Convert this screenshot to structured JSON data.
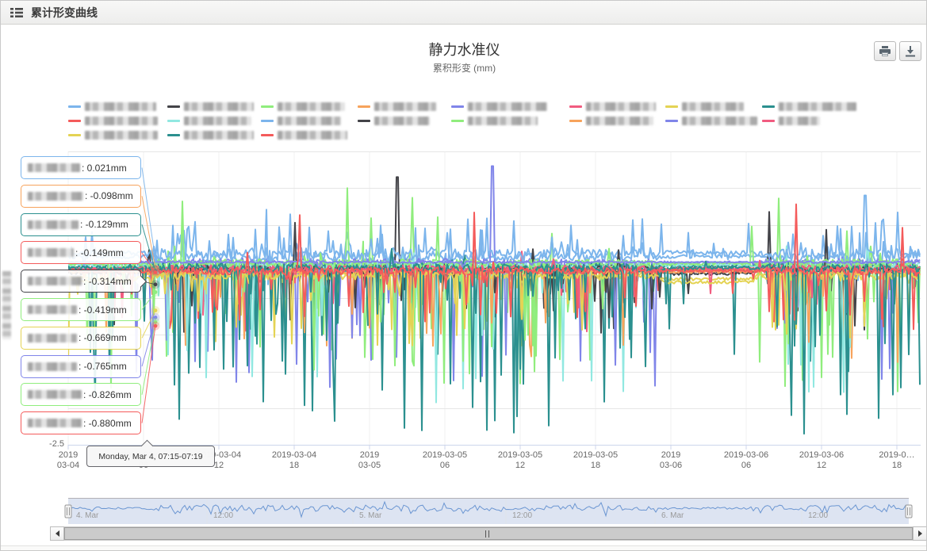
{
  "header": {
    "title": "累计形变曲线"
  },
  "toolbar": {
    "print_label": "打印图表",
    "download_label": "下载图表"
  },
  "chart_data": {
    "type": "line",
    "title": "静力水准仪",
    "subtitle": "累积形变 (mm)",
    "y_axis": {
      "min": -2.5,
      "max": 1.5,
      "tick_step": 0.5,
      "visible_label": "-2.5",
      "title_blurred": true
    },
    "x_axis": {
      "ticks": [
        {
          "line1": "2019",
          "line2": "03-04"
        },
        {
          "line1": "2019-03-04",
          "line2": "06"
        },
        {
          "line1": "2019-03-04",
          "line2": "12"
        },
        {
          "line1": "2019-03-04",
          "line2": "18"
        },
        {
          "line1": "2019",
          "line2": "03-05"
        },
        {
          "line1": "2019-03-05",
          "line2": "06"
        },
        {
          "line1": "2019-03-05",
          "line2": "12"
        },
        {
          "line1": "2019-03-05",
          "line2": "18"
        },
        {
          "line1": "2019",
          "line2": "03-06"
        },
        {
          "line1": "2019-03-06",
          "line2": "06"
        },
        {
          "line1": "2019-03-06",
          "line2": "12"
        },
        {
          "line1": "2019-0…",
          "line2": "18"
        }
      ]
    },
    "legend": {
      "items_blurred": true,
      "items": [
        {
          "color": "#7cb5ec",
          "x": 85,
          "row": 0,
          "w": 90
        },
        {
          "color": "#434348",
          "x": 210,
          "row": 0,
          "w": 88
        },
        {
          "color": "#90ed7d",
          "x": 328,
          "row": 0,
          "w": 85
        },
        {
          "color": "#f7a35c",
          "x": 450,
          "row": 0,
          "w": 78
        },
        {
          "color": "#8085e9",
          "x": 568,
          "row": 0,
          "w": 100
        },
        {
          "color": "#f15c80",
          "x": 717,
          "row": 0,
          "w": 88
        },
        {
          "color": "#e4d354",
          "x": 838,
          "row": 0,
          "w": 78
        },
        {
          "color": "#2b908f",
          "x": 960,
          "row": 0,
          "w": 98
        },
        {
          "color": "#f45b5b",
          "x": 85,
          "row": 1,
          "w": 92
        },
        {
          "color": "#91e8e1",
          "x": 210,
          "row": 1,
          "w": 85
        },
        {
          "color": "#7cb5ec",
          "x": 328,
          "row": 1,
          "w": 80
        },
        {
          "color": "#434348",
          "x": 450,
          "row": 1,
          "w": 70
        },
        {
          "color": "#90ed7d",
          "x": 568,
          "row": 1,
          "w": 88
        },
        {
          "color": "#f7a35c",
          "x": 717,
          "row": 1,
          "w": 85
        },
        {
          "color": "#8085e9",
          "x": 838,
          "row": 1,
          "w": 95
        },
        {
          "color": "#f15c80",
          "x": 960,
          "row": 1,
          "w": 52
        },
        {
          "color": "#e4d354",
          "x": 85,
          "row": 2,
          "w": 92
        },
        {
          "color": "#2b908f",
          "x": 210,
          "row": 2,
          "w": 88
        },
        {
          "color": "#f45b5b",
          "x": 328,
          "row": 2,
          "w": 88
        }
      ]
    },
    "tooltip": {
      "header": "Monday, Mar 4, 07:15-07:19",
      "anchor_x": 195,
      "points": [
        {
          "color": "#7cb5ec",
          "value": "0.021mm",
          "v": 0.021,
          "label_w": 66
        },
        {
          "color": "#f7a35c",
          "value": "-0.098mm",
          "v": -0.098,
          "label_w": 70
        },
        {
          "color": "#2b908f",
          "value": "-0.129mm",
          "v": -0.129,
          "label_w": 64
        },
        {
          "color": "#f45b5b",
          "value": "-0.149mm",
          "v": -0.149,
          "label_w": 58
        },
        {
          "color": "#434348",
          "value": "-0.314mm",
          "v": -0.314,
          "label_w": 68,
          "anchor": true
        },
        {
          "color": "#90ed7d",
          "value": "-0.419mm",
          "v": -0.419,
          "label_w": 62
        },
        {
          "color": "#e4d354",
          "value": "-0.669mm",
          "v": -0.669,
          "label_w": 62
        },
        {
          "color": "#8085e9",
          "value": "-0.765mm",
          "v": -0.765,
          "label_w": 62
        },
        {
          "color": "#90ed7d",
          "value": "-0.826mm",
          "v": -0.826,
          "label_w": 68
        },
        {
          "color": "#f45b5b",
          "value": "-0.880mm",
          "v": -0.88,
          "label_w": 68
        }
      ]
    },
    "activity_envelope": [
      [
        0,
        0.22
      ],
      [
        0.085,
        0.22
      ],
      [
        0.105,
        1
      ],
      [
        0.47,
        1
      ],
      [
        0.5,
        0.82
      ],
      [
        0.68,
        0.82
      ],
      [
        0.7,
        0.15
      ],
      [
        0.8,
        0.15
      ],
      [
        0.825,
        1
      ],
      [
        1,
        1
      ]
    ],
    "series": [
      {
        "name": "series-01-blurred",
        "color": "#7cb5ec",
        "base": 0.06,
        "noise": 0.06,
        "p": 0.5,
        "up_share": 0.8,
        "up": 0.45,
        "down": 0.35,
        "calm": 0.01,
        "seed": 1,
        "events": []
      },
      {
        "name": "series-02-blurred",
        "color": "#434348",
        "base": -0.08,
        "noise": 0.06,
        "p": 0.3,
        "up_share": 0.12,
        "up": 1.15,
        "down": 0.85,
        "calm": -0.07,
        "seed": 2,
        "events": [
          [
            500,
            1.15
          ]
        ]
      },
      {
        "name": "series-03-blurred",
        "color": "#90ed7d",
        "base": -0.04,
        "noise": 0.06,
        "p": 0.3,
        "up_share": 0.2,
        "up": 1.0,
        "down": 1.7,
        "calm": 0,
        "seed": 3,
        "events": [
          [
            437,
            1.0
          ]
        ]
      },
      {
        "name": "series-04-blurred",
        "color": "#f7a35c",
        "base": -0.1,
        "noise": 0.05,
        "p": 0.2,
        "up_share": 0.08,
        "up": 0.3,
        "down": 1.3,
        "calm": 0,
        "seed": 4,
        "events": []
      },
      {
        "name": "series-05-blurred",
        "color": "#8085e9",
        "base": -0.02,
        "noise": 0.06,
        "p": 0.32,
        "up_share": 0.15,
        "up": 1.3,
        "down": 1.75,
        "calm": 0,
        "seed": 5,
        "events": [
          [
            620,
            1.3
          ]
        ]
      },
      {
        "name": "series-06-blurred",
        "color": "#f15c80",
        "base": -0.12,
        "noise": 0.05,
        "p": 0.14,
        "up_share": 0.1,
        "up": 0.3,
        "down": 0.9,
        "calm": 0,
        "seed": 6,
        "events": []
      },
      {
        "name": "series-07-blurred",
        "color": "#e4d354",
        "base": -0.17,
        "noise": 0.05,
        "p": 0.22,
        "up_share": 0.06,
        "up": 0.2,
        "down": 1.15,
        "calm": -0.1,
        "seed": 7,
        "events": []
      },
      {
        "name": "series-08-blurred",
        "color": "#2b908f",
        "base": -0.07,
        "noise": 0.06,
        "p": 0.36,
        "up_share": 0.08,
        "up": 0.25,
        "down": 2.1,
        "calm": 0,
        "seed": 8,
        "events": [
          [
            225,
            -2.15
          ]
        ]
      },
      {
        "name": "series-09-blurred",
        "color": "#f45b5b",
        "base": -0.12,
        "noise": 0.05,
        "p": 0.28,
        "up_share": 0.12,
        "up": 0.5,
        "down": 0.8,
        "calm": 0,
        "seed": 9,
        "events": []
      },
      {
        "name": "series-10-blurred",
        "color": "#91e8e1",
        "base": -0.05,
        "noise": 0.06,
        "p": 0.26,
        "up_share": 0.12,
        "up": 0.35,
        "down": 1.9,
        "calm": 0,
        "seed": 10,
        "events": []
      },
      {
        "name": "series-11-blurred",
        "color": "#7cb5ec",
        "base": 0.1,
        "noise": 0.07,
        "p": 0.42,
        "up_share": 0.8,
        "up": 0.55,
        "down": 0.45,
        "calm": 0.03,
        "seed": 11,
        "events": [
          [
            1090,
            0.9
          ]
        ]
      },
      {
        "name": "series-12-blurred",
        "color": "#434348",
        "base": -0.11,
        "noise": 0.05,
        "p": 0.22,
        "up_share": 0.1,
        "up": 0.9,
        "down": 0.7,
        "calm": -0.08,
        "seed": 12,
        "events": []
      },
      {
        "name": "series-13-blurred",
        "color": "#90ed7d",
        "base": -0.03,
        "noise": 0.06,
        "p": 0.26,
        "up_share": 0.25,
        "up": 0.9,
        "down": 1.5,
        "calm": 0,
        "seed": 13,
        "events": []
      },
      {
        "name": "series-14-blurred",
        "color": "#f7a35c",
        "base": -0.14,
        "noise": 0.05,
        "p": 0.16,
        "up_share": 0.08,
        "up": 0.25,
        "down": 1.0,
        "calm": 0,
        "seed": 14,
        "events": []
      },
      {
        "name": "series-15-blurred",
        "color": "#8085e9",
        "base": -0.01,
        "noise": 0.015,
        "p": 0.02,
        "up_share": 0,
        "up": 0,
        "down": 0.3,
        "calm": 0,
        "seed": 15,
        "events": []
      },
      {
        "name": "series-16-blurred",
        "color": "#f15c80",
        "base": -0.1,
        "noise": 0.05,
        "p": 0.12,
        "up_share": 0.15,
        "up": 0.3,
        "down": 0.6,
        "calm": 0,
        "seed": 16,
        "events": []
      },
      {
        "name": "series-17-blurred",
        "color": "#e4d354",
        "base": -0.2,
        "noise": 0.05,
        "p": 0.2,
        "up_share": 0.05,
        "up": 0.15,
        "down": 1.0,
        "calm": -0.12,
        "seed": 17,
        "events": []
      },
      {
        "name": "series-18-blurred",
        "color": "#2b908f",
        "base": -0.09,
        "noise": 0.06,
        "p": 0.34,
        "up_share": 0.06,
        "up": 0.3,
        "down": 2.3,
        "calm": 0,
        "seed": 18,
        "events": [
          [
            613,
            -2.3
          ],
          [
            1013,
            -2.35
          ]
        ]
      },
      {
        "name": "series-19-blurred",
        "color": "#f45b5b",
        "base": -0.13,
        "noise": 0.05,
        "p": 0.26,
        "up_share": 0.15,
        "up": 0.8,
        "down": 0.65,
        "calm": 0,
        "seed": 19,
        "events": [
          [
            1003,
            0.78
          ]
        ]
      }
    ],
    "navigator": {
      "labels": [
        {
          "text": "4. Mar",
          "x": 95
        },
        {
          "text": "12:00",
          "x": 268
        },
        {
          "text": "5. Mar",
          "x": 452
        },
        {
          "text": "12:00",
          "x": 645
        },
        {
          "text": "6. Mar",
          "x": 833
        },
        {
          "text": "12:00",
          "x": 1018
        }
      ],
      "line_color": "#6b96d2",
      "mask_color": "rgba(102,133,194,0.22)"
    }
  }
}
